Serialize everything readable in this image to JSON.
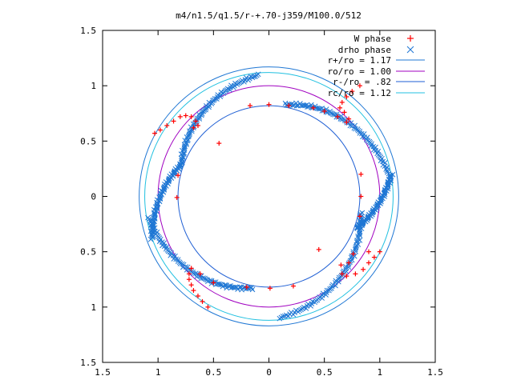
{
  "chart_data": {
    "type": "scatter",
    "title": "m4/n1.5/q1.5/r-+.70-j359/M100.0/512",
    "xlabel": "",
    "ylabel": "",
    "xlim": [
      -1.5,
      1.5
    ],
    "ylim": [
      -1.5,
      1.5
    ],
    "x_ticks": [
      {
        "value": -1.5,
        "label": "1.5"
      },
      {
        "value": -1,
        "label": "1"
      },
      {
        "value": -0.5,
        "label": "0.5"
      },
      {
        "value": 0,
        "label": "0"
      },
      {
        "value": 0.5,
        "label": "0.5"
      },
      {
        "value": 1,
        "label": "1"
      },
      {
        "value": 1.5,
        "label": "1.5"
      }
    ],
    "y_ticks": [
      {
        "value": 1.5,
        "label": "1.5"
      },
      {
        "value": 1,
        "label": "1"
      },
      {
        "value": 0.5,
        "label": "0.5"
      },
      {
        "value": 0,
        "label": "0"
      },
      {
        "value": -0.5,
        "label": "0.5"
      },
      {
        "value": -1,
        "label": "1"
      },
      {
        "value": -1.5,
        "label": "1.5"
      }
    ],
    "grid": false,
    "legend_position": "top-right",
    "series": [
      {
        "name": "W phase",
        "marker": "plus",
        "color": "#ff0000",
        "points": [
          [
            0.82,
            1.0
          ],
          [
            0.75,
            0.95
          ],
          [
            0.7,
            0.9
          ],
          [
            0.66,
            0.85
          ],
          [
            0.64,
            0.8
          ],
          [
            0.68,
            0.76
          ],
          [
            0.72,
            0.7
          ],
          [
            0.7,
            0.67
          ],
          [
            0.62,
            0.72
          ],
          [
            0.5,
            0.77
          ],
          [
            0.4,
            0.8
          ],
          [
            1.0,
            -0.5
          ],
          [
            0.95,
            -0.55
          ],
          [
            0.9,
            -0.6
          ],
          [
            0.85,
            -0.66
          ],
          [
            0.78,
            -0.7
          ],
          [
            0.7,
            -0.72
          ],
          [
            0.66,
            -0.7
          ],
          [
            0.65,
            -0.62
          ],
          [
            0.72,
            -0.6
          ],
          [
            0.76,
            -0.52
          ],
          [
            -0.55,
            -1.0
          ],
          [
            -0.6,
            -0.95
          ],
          [
            -0.64,
            -0.9
          ],
          [
            -0.68,
            -0.85
          ],
          [
            -0.7,
            -0.8
          ],
          [
            -0.72,
            -0.75
          ],
          [
            -0.72,
            -0.7
          ],
          [
            -0.7,
            -0.65
          ],
          [
            -0.62,
            -0.7
          ],
          [
            -0.5,
            -0.78
          ],
          [
            -1.03,
            0.57
          ],
          [
            -0.98,
            0.6
          ],
          [
            -0.92,
            0.64
          ],
          [
            -0.86,
            0.68
          ],
          [
            -0.8,
            0.72
          ],
          [
            -0.75,
            0.73
          ],
          [
            -0.7,
            0.72
          ],
          [
            -0.66,
            0.68
          ],
          [
            -0.64,
            0.64
          ],
          [
            -0.68,
            0.62
          ],
          [
            0.0,
            0.83
          ],
          [
            -0.17,
            0.82
          ],
          [
            0.18,
            0.82
          ],
          [
            -0.82,
            0.19
          ],
          [
            -0.83,
            -0.01
          ],
          [
            0.83,
            0.0
          ],
          [
            0.82,
            -0.18
          ],
          [
            0.83,
            0.2
          ],
          [
            0.01,
            -0.83
          ],
          [
            -0.2,
            -0.82
          ],
          [
            0.22,
            -0.81
          ],
          [
            0.9,
            -0.5
          ],
          [
            0.45,
            -0.48
          ],
          [
            -0.45,
            0.48
          ]
        ]
      },
      {
        "name": "drho phase",
        "marker": "cross",
        "color": "#1f77d4",
        "points": []
      }
    ],
    "circles": [
      {
        "name": "r+/ro = 1.17",
        "radius": 1.17,
        "color": "#1f77d4"
      },
      {
        "name": "ro/ro = 1.00",
        "radius": 1.0,
        "color": "#a000c0"
      },
      {
        "name": "r-/ro = .82",
        "radius": 0.82,
        "color": "#1f5fd4"
      },
      {
        "name": "rc/ro = 1.12",
        "radius": 1.12,
        "color": "#20c0e0"
      }
    ],
    "drho_bands": [
      {
        "t_start_deg": 10,
        "t_end_deg": 80,
        "r_start": 1.1,
        "r_end": 0.84
      },
      {
        "t_start_deg": 95,
        "t_end_deg": 160,
        "r_start": 1.1,
        "r_end": 0.84
      },
      {
        "t_start_deg": 190,
        "t_end_deg": 260,
        "r_start": 1.1,
        "r_end": 0.84
      },
      {
        "t_start_deg": 275,
        "t_end_deg": 350,
        "r_start": 1.1,
        "r_end": 0.84
      },
      {
        "t_start_deg": 160,
        "t_end_deg": 200,
        "r_start": 0.84,
        "r_end": 1.12
      },
      {
        "t_start_deg": 340,
        "t_end_deg": 370,
        "r_start": 0.84,
        "r_end": 1.12
      }
    ]
  }
}
